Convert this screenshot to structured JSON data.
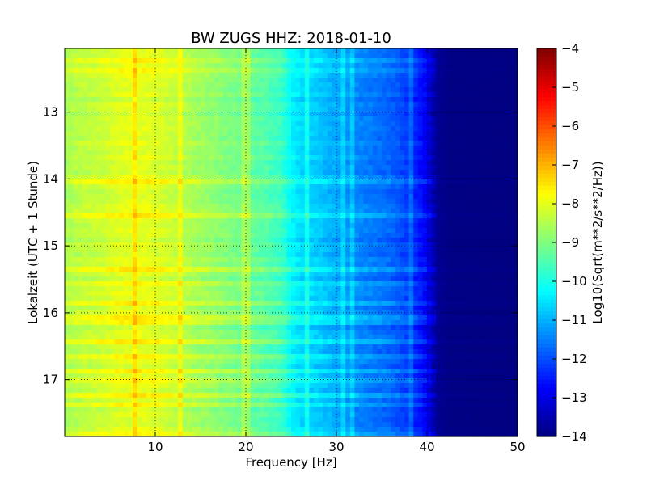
{
  "chart_data": {
    "type": "heatmap",
    "title": "BW ZUGS HHZ: 2018-01-10",
    "xlabel": "Frequency [Hz]",
    "ylabel": "Lokalzeit (UTC + 1 Stunde)",
    "xlim": [
      0,
      50
    ],
    "ylim": [
      17.85,
      12.05
    ],
    "x_ticks": [
      10,
      20,
      30,
      40,
      50
    ],
    "y_ticks": [
      13,
      14,
      15,
      16,
      17
    ],
    "grid": true,
    "colormap": "jet",
    "colorbar": {
      "label": "Log10(Sqrt(m**2/s**2/Hz))",
      "range": [
        -14,
        -4
      ],
      "ticks": [
        -4,
        -5,
        -6,
        -7,
        -8,
        -9,
        -10,
        -11,
        -12,
        -13,
        -14
      ]
    },
    "frequency_profile": {
      "frequency_hz": [
        0,
        2,
        4,
        6,
        8,
        10,
        12,
        14,
        16,
        18,
        20,
        22,
        24,
        25,
        26,
        28,
        30,
        32,
        34,
        36,
        38,
        39,
        40,
        41,
        42,
        50
      ],
      "value": [
        -8.6,
        -8.4,
        -8.3,
        -8.1,
        -8.0,
        -8.1,
        -8.3,
        -8.6,
        -8.8,
        -9.0,
        -9.2,
        -9.4,
        -9.7,
        -10.3,
        -10.6,
        -10.8,
        -11.1,
        -11.4,
        -11.6,
        -11.8,
        -12.2,
        -12.5,
        -12.9,
        -13.8,
        -13.95,
        -14.0
      ]
    }
  }
}
